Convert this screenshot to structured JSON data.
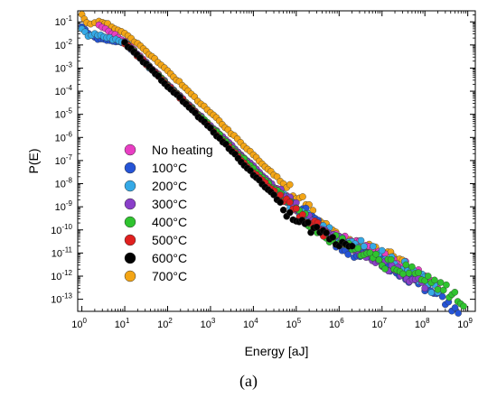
{
  "caption": "(a)",
  "chart_data": {
    "type": "scatter",
    "xlabel": "Energy [aJ]",
    "ylabel": "P(E)",
    "xscale": "log",
    "yscale": "log",
    "xlim": [
      0.8,
      1500000000.0
    ],
    "ylim": [
      3e-14,
      0.3
    ],
    "x_ticks": [
      "0",
      "1",
      "2",
      "3",
      "4",
      "5",
      "6",
      "7",
      "8",
      "9"
    ],
    "y_ticks": [
      "-1",
      "-2",
      "-3",
      "-4",
      "-5",
      "-6",
      "-7",
      "-8",
      "-9",
      "-10",
      "-11",
      "-12",
      "-13"
    ],
    "tick_base": "10",
    "legend_position": "left-center",
    "series": [
      {
        "name": "No heating",
        "color": "#e83ec3",
        "points": [
          [
            2.5,
            0.07
          ],
          [
            10,
            0.015
          ],
          [
            100,
            0.0002
          ],
          [
            1000.0,
            3e-06
          ],
          [
            10000.0,
            5e-08
          ],
          [
            30000.0,
            6e-09
          ],
          [
            100000.0,
            8e-10
          ],
          [
            300000.0,
            1.5e-10
          ],
          [
            1000000.0,
            4e-11
          ],
          [
            3000000.0,
            2e-11
          ],
          [
            10000000.0,
            8e-12
          ],
          [
            30000000.0,
            3e-12
          ],
          [
            100000000.0,
            8e-13
          ],
          [
            200000000.0,
            3e-13
          ]
        ]
      },
      {
        "name": "100°C",
        "color": "#2554d6",
        "points": [
          [
            1,
            0.06
          ],
          [
            2,
            0.02
          ],
          [
            10,
            0.012
          ],
          [
            100,
            0.00018
          ],
          [
            1000.0,
            2.8e-06
          ],
          [
            10000.0,
            4e-08
          ],
          [
            50000.0,
            3e-09
          ],
          [
            200000.0,
            4e-10
          ],
          [
            1000000.0,
            2e-11
          ],
          [
            5000000.0,
            6e-12
          ],
          [
            30000000.0,
            1.5e-12
          ],
          [
            100000000.0,
            3e-13
          ],
          [
            300000000.0,
            1e-13
          ],
          [
            600000000.0,
            2.5e-14
          ]
        ]
      },
      {
        "name": "200°C",
        "color": "#35a9e6",
        "points": [
          [
            1,
            0.05
          ],
          [
            1.4,
            0.025
          ],
          [
            2,
            0.03
          ],
          [
            10,
            0.013
          ],
          [
            100,
            0.00019
          ],
          [
            1000.0,
            3e-06
          ],
          [
            10000.0,
            5e-08
          ],
          [
            100000.0,
            8e-10
          ],
          [
            500000.0,
            1e-10
          ],
          [
            2000000.0,
            3e-11
          ],
          [
            10000000.0,
            1e-11
          ],
          [
            40000000.0,
            2e-12
          ],
          [
            100000000.0,
            6e-13
          ],
          [
            200000000.0,
            2e-13
          ]
        ]
      },
      {
        "name": "300°C",
        "color": "#8a3fc9",
        "points": [
          [
            10,
            0.014
          ],
          [
            100,
            0.0002
          ],
          [
            1000.0,
            3.2e-06
          ],
          [
            10000.0,
            5.5e-08
          ],
          [
            100000.0,
            9e-10
          ],
          [
            400000.0,
            1.2e-10
          ],
          [
            1000000.0,
            3e-11
          ],
          [
            5000000.0,
            8e-12
          ],
          [
            20000000.0,
            2e-12
          ],
          [
            60000000.0,
            6e-13
          ],
          [
            100000000.0,
            3e-13
          ]
        ]
      },
      {
        "name": "400°C",
        "color": "#2fc32f",
        "points": [
          [
            10,
            0.013
          ],
          [
            100,
            0.00019
          ],
          [
            1000.0,
            3e-06
          ],
          [
            10000.0,
            4.5e-08
          ],
          [
            100000.0,
            6e-10
          ],
          [
            500000.0,
            6e-11
          ],
          [
            2000000.0,
            1.5e-11
          ],
          [
            10000000.0,
            4e-12
          ],
          [
            50000000.0,
            1.5e-12
          ],
          [
            200000000.0,
            4e-13
          ],
          [
            500000000.0,
            1.5e-13
          ],
          [
            800000000.0,
            5e-14
          ]
        ]
      },
      {
        "name": "500°C",
        "color": "#e0201f",
        "points": [
          [
            10,
            0.012
          ],
          [
            100,
            0.00018
          ],
          [
            1000.0,
            2.6e-06
          ],
          [
            10000.0,
            3e-08
          ],
          [
            50000.0,
            2e-09
          ],
          [
            200000.0,
            2e-10
          ],
          [
            500000.0,
            8e-11
          ]
        ]
      },
      {
        "name": "600°C",
        "color": "#000000",
        "points": [
          [
            10,
            0.012
          ],
          [
            100,
            0.00017
          ],
          [
            1000.0,
            2.4e-06
          ],
          [
            10000.0,
            2.5e-08
          ],
          [
            30000.0,
            3e-09
          ],
          [
            100000.0,
            2e-10
          ],
          [
            300000.0,
            1e-10
          ],
          [
            1000000.0,
            3e-11
          ],
          [
            2000000.0,
            2e-11
          ]
        ]
      },
      {
        "name": "700°C",
        "color": "#f3a516",
        "points": [
          [
            1,
            0.2
          ],
          [
            1.3,
            0.1
          ],
          [
            1.6,
            0.08
          ],
          [
            2,
            0.09
          ],
          [
            2.5,
            0.1
          ],
          [
            3,
            0.095
          ],
          [
            4,
            0.08
          ],
          [
            5,
            0.065
          ],
          [
            7,
            0.045
          ],
          [
            10,
            0.03
          ],
          [
            20,
            0.011
          ],
          [
            50,
            0.0025
          ],
          [
            100,
            0.0008
          ],
          [
            300,
            0.0001
          ],
          [
            1000.0,
            1.2e-05
          ],
          [
            3000.0,
            1.5e-06
          ],
          [
            10000.0,
            1.8e-07
          ],
          [
            30000.0,
            2.5e-08
          ],
          [
            100000.0,
            3e-09
          ],
          [
            200000.0,
            1e-09
          ],
          [
            300000.0,
            2e-10
          ],
          [
            500000.0,
            1.5e-10
          ],
          [
            1000000.0,
            6e-11
          ],
          [
            1500000.0,
            3e-11
          ],
          [
            3000000.0,
            2e-11
          ],
          [
            10000000.0,
            1.2e-11
          ],
          [
            30000000.0,
            5e-12
          ]
        ]
      }
    ]
  }
}
